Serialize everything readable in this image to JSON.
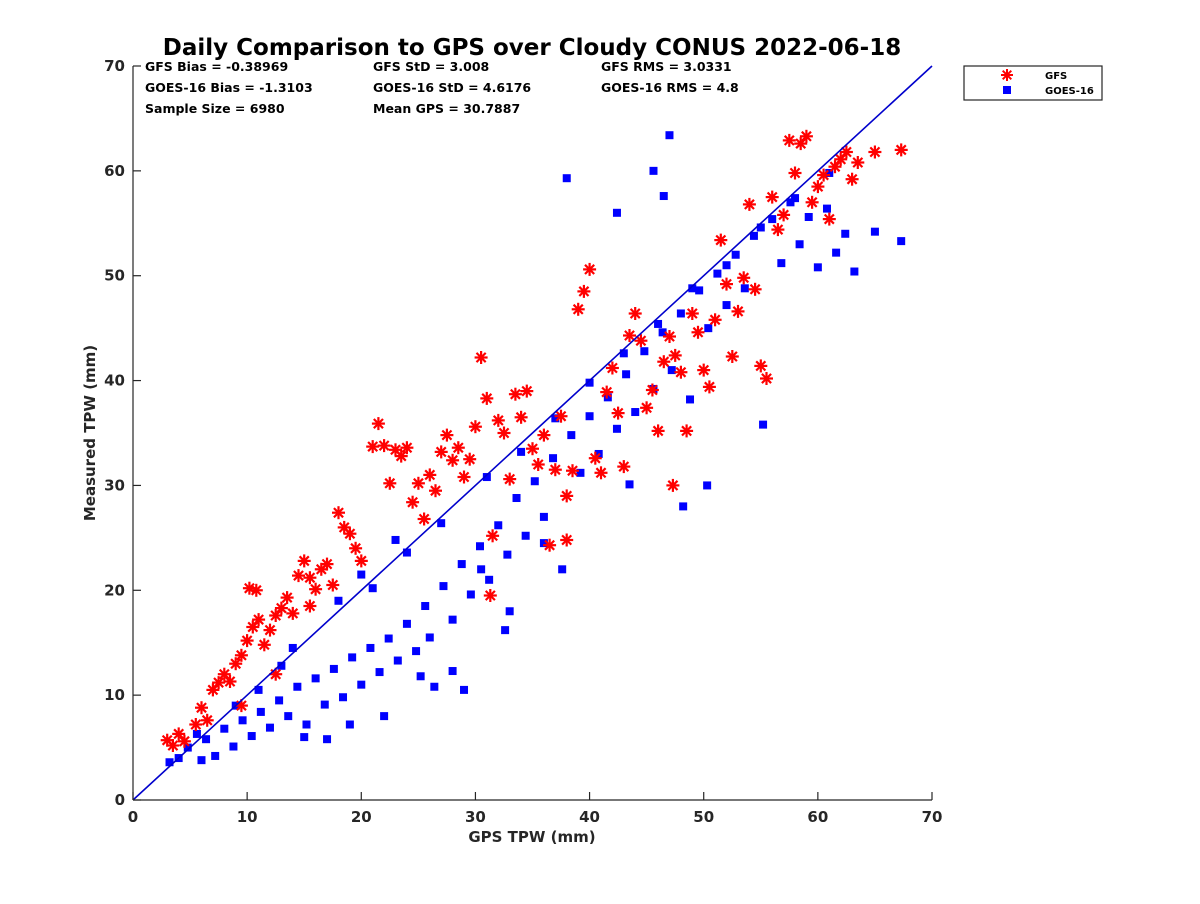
{
  "chart_data": {
    "type": "scatter",
    "title": "Daily Comparison to GPS over Cloudy CONUS 2022-06-18",
    "xlabel": "GPS TPW (mm)",
    "ylabel": "Measured TPW (mm)",
    "xlim": [
      0,
      70
    ],
    "ylim": [
      0,
      70
    ],
    "xticks": [
      "0",
      "10",
      "20",
      "30",
      "40",
      "50",
      "60",
      "70"
    ],
    "yticks": [
      "0",
      "10",
      "20",
      "30",
      "40",
      "50",
      "60",
      "70"
    ],
    "grid": false,
    "legend_position": "outside top-right",
    "reference_line": {
      "x": [
        0,
        70
      ],
      "y": [
        0,
        70
      ],
      "color": "#0000cc"
    },
    "stats": [
      [
        "GFS Bias = -0.38969",
        "GFS StD = 3.008",
        "GFS RMS = 3.0331"
      ],
      [
        "GOES-16 Bias = -1.3103",
        "GOES-16 StD = 4.6176",
        "GOES-16 RMS = 4.8"
      ],
      [
        "Sample Size = 6980",
        "Mean GPS = 30.7887",
        ""
      ]
    ],
    "series": [
      {
        "name": "GFS",
        "marker": "asterisk",
        "color": "#ff0000",
        "points": [
          [
            3.0,
            5.7
          ],
          [
            3.5,
            5.2
          ],
          [
            4.0,
            6.3
          ],
          [
            4.5,
            5.6
          ],
          [
            5.5,
            7.2
          ],
          [
            6.0,
            8.8
          ],
          [
            6.5,
            7.6
          ],
          [
            7.0,
            10.5
          ],
          [
            7.5,
            11.2
          ],
          [
            8.0,
            12.0
          ],
          [
            8.5,
            11.3
          ],
          [
            9.0,
            13.0
          ],
          [
            9.5,
            13.8
          ],
          [
            10.0,
            15.2
          ],
          [
            10.5,
            16.5
          ],
          [
            11.0,
            17.2
          ],
          [
            10.2,
            20.2
          ],
          [
            10.8,
            20.0
          ],
          [
            11.5,
            14.8
          ],
          [
            12.0,
            16.2
          ],
          [
            12.5,
            17.6
          ],
          [
            13.0,
            18.3
          ],
          [
            13.5,
            19.3
          ],
          [
            14.0,
            17.8
          ],
          [
            14.5,
            21.4
          ],
          [
            15.0,
            22.8
          ],
          [
            15.5,
            21.2
          ],
          [
            16.0,
            20.1
          ],
          [
            16.5,
            22.0
          ],
          [
            17.0,
            22.5
          ],
          [
            17.5,
            20.5
          ],
          [
            18.0,
            27.4
          ],
          [
            18.5,
            26.0
          ],
          [
            19.0,
            25.4
          ],
          [
            19.5,
            24.0
          ],
          [
            20.0,
            22.8
          ],
          [
            21.0,
            33.7
          ],
          [
            21.5,
            35.9
          ],
          [
            22.0,
            33.8
          ],
          [
            22.5,
            30.2
          ],
          [
            23.0,
            33.4
          ],
          [
            23.5,
            32.8
          ],
          [
            24.0,
            33.6
          ],
          [
            24.5,
            28.4
          ],
          [
            25.0,
            30.2
          ],
          [
            25.5,
            26.8
          ],
          [
            26.0,
            31.0
          ],
          [
            26.5,
            29.5
          ],
          [
            27.0,
            33.2
          ],
          [
            27.5,
            34.8
          ],
          [
            28.0,
            32.4
          ],
          [
            28.5,
            33.6
          ],
          [
            29.0,
            30.8
          ],
          [
            29.5,
            32.5
          ],
          [
            30.0,
            35.6
          ],
          [
            30.5,
            42.2
          ],
          [
            31.0,
            38.3
          ],
          [
            31.5,
            25.2
          ],
          [
            32.0,
            36.2
          ],
          [
            32.5,
            35.0
          ],
          [
            33.0,
            30.6
          ],
          [
            33.5,
            38.7
          ],
          [
            34.0,
            36.5
          ],
          [
            34.5,
            39.0
          ],
          [
            35.0,
            33.5
          ],
          [
            35.5,
            32.0
          ],
          [
            36.0,
            34.8
          ],
          [
            36.5,
            24.3
          ],
          [
            37.0,
            31.5
          ],
          [
            37.5,
            36.6
          ],
          [
            38.0,
            29.0
          ],
          [
            38.5,
            31.4
          ],
          [
            39.0,
            46.8
          ],
          [
            39.5,
            48.5
          ],
          [
            40.0,
            50.6
          ],
          [
            40.5,
            32.6
          ],
          [
            41.0,
            31.2
          ],
          [
            41.5,
            38.9
          ],
          [
            42.0,
            41.2
          ],
          [
            42.5,
            36.9
          ],
          [
            43.0,
            31.8
          ],
          [
            43.5,
            44.3
          ],
          [
            44.0,
            46.4
          ],
          [
            44.5,
            43.8
          ],
          [
            45.0,
            37.4
          ],
          [
            45.5,
            39.1
          ],
          [
            46.0,
            35.2
          ],
          [
            46.5,
            41.8
          ],
          [
            47.0,
            44.2
          ],
          [
            47.5,
            42.4
          ],
          [
            48.0,
            40.8
          ],
          [
            48.5,
            35.2
          ],
          [
            49.0,
            46.4
          ],
          [
            49.5,
            44.6
          ],
          [
            50.0,
            41.0
          ],
          [
            50.5,
            39.4
          ],
          [
            51.0,
            45.8
          ],
          [
            51.5,
            53.4
          ],
          [
            52.0,
            49.2
          ],
          [
            52.5,
            42.3
          ],
          [
            53.0,
            46.6
          ],
          [
            53.5,
            49.8
          ],
          [
            54.0,
            56.8
          ],
          [
            54.5,
            48.7
          ],
          [
            55.0,
            41.4
          ],
          [
            55.5,
            40.2
          ],
          [
            56.0,
            57.5
          ],
          [
            56.5,
            54.4
          ],
          [
            57.0,
            55.8
          ],
          [
            57.5,
            62.9
          ],
          [
            58.0,
            59.8
          ],
          [
            58.5,
            62.6
          ],
          [
            59.0,
            63.3
          ],
          [
            59.5,
            57.0
          ],
          [
            60.0,
            58.5
          ],
          [
            60.5,
            59.6
          ],
          [
            61.0,
            55.4
          ],
          [
            61.5,
            60.4
          ],
          [
            62.0,
            61.1
          ],
          [
            62.5,
            61.8
          ],
          [
            63.0,
            59.2
          ],
          [
            63.5,
            60.8
          ],
          [
            65.0,
            61.8
          ],
          [
            67.3,
            62.0
          ],
          [
            47.3,
            30.0
          ],
          [
            31.3,
            19.5
          ],
          [
            38.0,
            24.8
          ],
          [
            12.5,
            12.0
          ],
          [
            15.5,
            18.5
          ],
          [
            9.5,
            9.0
          ]
        ]
      },
      {
        "name": "GOES-16",
        "marker": "square",
        "color": "#0000ff",
        "points": [
          [
            3.2,
            3.6
          ],
          [
            4.0,
            4.0
          ],
          [
            4.8,
            5.0
          ],
          [
            5.6,
            6.3
          ],
          [
            6.4,
            5.8
          ],
          [
            7.2,
            4.2
          ],
          [
            8.0,
            6.8
          ],
          [
            8.8,
            5.1
          ],
          [
            9.6,
            7.6
          ],
          [
            10.4,
            6.1
          ],
          [
            11.2,
            8.4
          ],
          [
            12.0,
            6.9
          ],
          [
            12.8,
            9.5
          ],
          [
            13.6,
            8.0
          ],
          [
            14.4,
            10.8
          ],
          [
            15.2,
            7.2
          ],
          [
            16.0,
            11.6
          ],
          [
            16.8,
            9.1
          ],
          [
            17.6,
            12.5
          ],
          [
            18.4,
            9.8
          ],
          [
            19.2,
            13.6
          ],
          [
            20.0,
            11.0
          ],
          [
            20.8,
            14.5
          ],
          [
            21.6,
            12.2
          ],
          [
            22.4,
            15.4
          ],
          [
            23.2,
            13.3
          ],
          [
            24.0,
            16.8
          ],
          [
            24.8,
            14.2
          ],
          [
            25.6,
            18.5
          ],
          [
            26.4,
            10.8
          ],
          [
            27.2,
            20.4
          ],
          [
            28.0,
            17.2
          ],
          [
            28.8,
            22.5
          ],
          [
            29.6,
            19.6
          ],
          [
            30.4,
            24.2
          ],
          [
            31.2,
            21.0
          ],
          [
            32.0,
            26.2
          ],
          [
            32.8,
            23.4
          ],
          [
            33.6,
            28.8
          ],
          [
            34.4,
            25.2
          ],
          [
            35.2,
            30.4
          ],
          [
            36.0,
            27.0
          ],
          [
            36.8,
            32.6
          ],
          [
            37.6,
            22.0
          ],
          [
            38.4,
            34.8
          ],
          [
            39.2,
            31.2
          ],
          [
            40.0,
            36.6
          ],
          [
            40.8,
            33.0
          ],
          [
            41.6,
            38.4
          ],
          [
            42.4,
            35.4
          ],
          [
            43.2,
            40.6
          ],
          [
            44.0,
            37.0
          ],
          [
            44.8,
            42.8
          ],
          [
            45.6,
            39.2
          ],
          [
            46.4,
            44.6
          ],
          [
            47.2,
            41.0
          ],
          [
            48.0,
            46.4
          ],
          [
            48.8,
            38.2
          ],
          [
            49.6,
            48.6
          ],
          [
            50.4,
            45.0
          ],
          [
            51.2,
            50.2
          ],
          [
            52.0,
            47.2
          ],
          [
            52.8,
            52.0
          ],
          [
            53.6,
            48.8
          ],
          [
            54.4,
            53.8
          ],
          [
            55.2,
            35.8
          ],
          [
            56.0,
            55.4
          ],
          [
            56.8,
            51.2
          ],
          [
            57.6,
            57.0
          ],
          [
            58.4,
            53.0
          ],
          [
            59.2,
            55.6
          ],
          [
            60.0,
            50.8
          ],
          [
            60.8,
            56.4
          ],
          [
            61.6,
            52.2
          ],
          [
            62.4,
            54.0
          ],
          [
            63.2,
            50.4
          ],
          [
            65.0,
            54.2
          ],
          [
            67.3,
            53.3
          ],
          [
            47.0,
            63.4
          ],
          [
            45.6,
            60.0
          ],
          [
            38.0,
            59.3
          ],
          [
            42.4,
            56.0
          ],
          [
            46.5,
            57.6
          ],
          [
            25.2,
            11.8
          ],
          [
            28.0,
            12.3
          ],
          [
            32.6,
            16.2
          ],
          [
            29.0,
            10.5
          ],
          [
            36.0,
            24.5
          ],
          [
            48.2,
            28.0
          ],
          [
            50.3,
            30.0
          ],
          [
            43.5,
            30.1
          ],
          [
            30.5,
            22.0
          ],
          [
            26.0,
            15.5
          ],
          [
            33.0,
            18.0
          ],
          [
            22.0,
            8.0
          ],
          [
            19.0,
            7.2
          ],
          [
            17.0,
            5.8
          ],
          [
            15.0,
            6.0
          ],
          [
            6.0,
            3.8
          ],
          [
            9.0,
            9.0
          ],
          [
            11.0,
            10.5
          ],
          [
            13.0,
            12.8
          ],
          [
            21.0,
            20.2
          ],
          [
            24.0,
            23.6
          ],
          [
            27.0,
            26.4
          ],
          [
            31.0,
            30.8
          ],
          [
            34.0,
            33.2
          ],
          [
            37.0,
            36.4
          ],
          [
            40.0,
            39.8
          ],
          [
            43.0,
            42.6
          ],
          [
            46.0,
            45.4
          ],
          [
            49.0,
            48.8
          ],
          [
            52.0,
            51.0
          ],
          [
            55.0,
            54.6
          ],
          [
            58.0,
            57.4
          ],
          [
            61.0,
            59.8
          ],
          [
            14.0,
            14.5
          ],
          [
            18.0,
            19.0
          ],
          [
            20.0,
            21.5
          ],
          [
            23.0,
            24.8
          ]
        ]
      }
    ]
  }
}
